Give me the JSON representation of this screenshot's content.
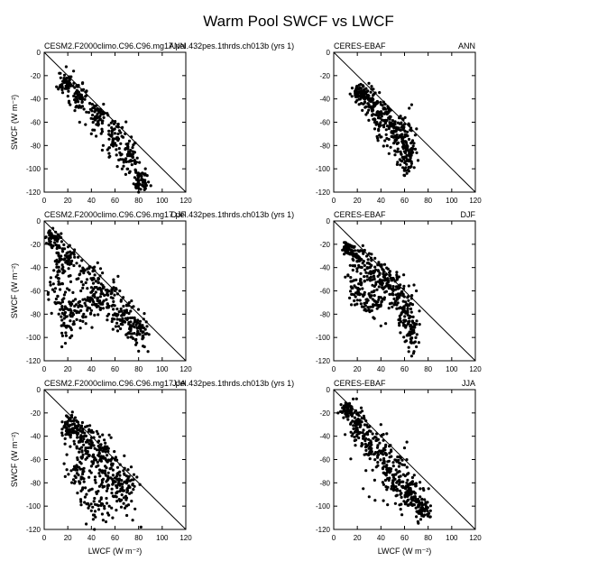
{
  "figure": {
    "title": "Warm Pool SWCF vs LWCF"
  },
  "chart_data": [
    {
      "type": "scatter",
      "panel": "cesm-ann",
      "left_label": "CESM2.F2000climo.C96.C96.mg17.pel.432pes.1thrds.ch013b (yrs 1)",
      "right_label": "ANN",
      "xlabel": "",
      "ylabel": "SWCF (W m⁻²)",
      "xlim": [
        0,
        120
      ],
      "ylim": [
        -120,
        0
      ],
      "xticks": [
        0,
        20,
        40,
        60,
        80,
        100,
        120
      ],
      "yticks": [
        0,
        -20,
        -40,
        -60,
        -80,
        -100,
        -120
      ],
      "reference_line": "y = -x",
      "marker_color": "#000000",
      "cloud": {
        "segments": [
          [
            18,
            -26,
            3,
            5
          ],
          [
            30,
            -38,
            4,
            6
          ],
          [
            45,
            -55,
            4,
            7
          ],
          [
            60,
            -72,
            4,
            7
          ],
          [
            72,
            -88,
            4,
            7
          ],
          [
            82,
            -110,
            3,
            6
          ]
        ],
        "n": 340,
        "seed": 11
      },
      "extra_points": [
        [
          18,
          -24
        ],
        [
          20,
          -28
        ],
        [
          85,
          -118
        ],
        [
          80,
          -112
        ],
        [
          22,
          -45
        ],
        [
          26,
          -50
        ],
        [
          30,
          -60
        ],
        [
          35,
          -62
        ],
        [
          40,
          -70
        ],
        [
          44,
          -72
        ],
        [
          50,
          -80
        ],
        [
          55,
          -90
        ],
        [
          62,
          -98
        ],
        [
          66,
          -100
        ]
      ]
    },
    {
      "type": "scatter",
      "panel": "obs-ann",
      "left_label": "CERES-EBAF",
      "right_label": "ANN",
      "xlabel": "",
      "ylabel": "",
      "xlim": [
        0,
        120
      ],
      "ylim": [
        -120,
        0
      ],
      "xticks": [
        0,
        20,
        40,
        60,
        80,
        100,
        120
      ],
      "yticks": [
        0,
        -20,
        -40,
        -60,
        -80,
        -100,
        -120
      ],
      "reference_line": "y = -x",
      "marker_color": "#000000",
      "cloud": {
        "segments": [
          [
            22,
            -35,
            3,
            3
          ],
          [
            30,
            -42,
            4,
            5
          ],
          [
            40,
            -55,
            5,
            7
          ],
          [
            50,
            -65,
            6,
            8
          ],
          [
            58,
            -75,
            5,
            9
          ],
          [
            62,
            -90,
            4,
            8
          ]
        ],
        "n": 380,
        "seed": 23
      },
      "extra_points": [
        [
          20,
          -34
        ],
        [
          24,
          -34
        ],
        [
          36,
          -62
        ],
        [
          38,
          -66
        ],
        [
          52,
          -88
        ],
        [
          56,
          -92
        ],
        [
          60,
          -100
        ],
        [
          62,
          -104
        ],
        [
          66,
          -84
        ],
        [
          68,
          -78
        ],
        [
          66,
          -45
        ],
        [
          64,
          -48
        ]
      ]
    },
    {
      "type": "scatter",
      "panel": "cesm-djf",
      "left_label": "CESM2.F2000climo.C96.C96.mg17.pel.432pes.1thrds.ch013b (yrs 1)",
      "right_label": "DJF",
      "xlabel": "",
      "ylabel": "SWCF (W m⁻²)",
      "xlim": [
        0,
        120
      ],
      "ylim": [
        -120,
        0
      ],
      "xticks": [
        0,
        20,
        40,
        60,
        80,
        100,
        120
      ],
      "yticks": [
        0,
        -20,
        -40,
        -60,
        -80,
        -100,
        -120
      ],
      "reference_line": "y = -x",
      "marker_color": "#000000",
      "cloud": {
        "segments": [
          [
            8,
            -16,
            3,
            4
          ],
          [
            20,
            -30,
            5,
            6
          ],
          [
            35,
            -45,
            6,
            7
          ],
          [
            50,
            -60,
            6,
            7
          ],
          [
            62,
            -75,
            6,
            7
          ],
          [
            72,
            -85,
            6,
            7
          ],
          [
            80,
            -95,
            4,
            6
          ],
          [
            12,
            -50,
            4,
            10
          ],
          [
            18,
            -80,
            4,
            12
          ],
          [
            30,
            -75,
            6,
            8
          ],
          [
            45,
            -70,
            6,
            6
          ]
        ],
        "n": 520,
        "seed": 37
      },
      "extra_points": [
        [
          5,
          -12
        ],
        [
          6,
          -15
        ],
        [
          15,
          -108
        ],
        [
          18,
          -105
        ],
        [
          22,
          -100
        ],
        [
          85,
          -108
        ],
        [
          88,
          -112
        ],
        [
          84,
          -100
        ]
      ]
    },
    {
      "type": "scatter",
      "panel": "obs-djf",
      "left_label": "CERES-EBAF",
      "right_label": "DJF",
      "xlabel": "",
      "ylabel": "",
      "xlim": [
        0,
        120
      ],
      "ylim": [
        -120,
        0
      ],
      "xticks": [
        0,
        20,
        40,
        60,
        80,
        100,
        120
      ],
      "yticks": [
        0,
        -20,
        -40,
        -60,
        -80,
        -100,
        -120
      ],
      "reference_line": "y = -x",
      "marker_color": "#000000",
      "cloud": {
        "segments": [
          [
            12,
            -24,
            3,
            3
          ],
          [
            22,
            -32,
            5,
            5
          ],
          [
            35,
            -45,
            6,
            6
          ],
          [
            45,
            -55,
            6,
            7
          ],
          [
            55,
            -65,
            5,
            8
          ],
          [
            62,
            -80,
            4,
            9
          ],
          [
            66,
            -95,
            3,
            8
          ],
          [
            20,
            -60,
            4,
            8
          ],
          [
            35,
            -70,
            6,
            6
          ]
        ],
        "n": 480,
        "seed": 51
      },
      "extra_points": [
        [
          10,
          -22
        ],
        [
          12,
          -20
        ],
        [
          68,
          -112
        ],
        [
          66,
          -116
        ],
        [
          70,
          -108
        ],
        [
          68,
          -55
        ],
        [
          70,
          -60
        ],
        [
          40,
          -90
        ],
        [
          44,
          -88
        ]
      ]
    },
    {
      "type": "scatter",
      "panel": "cesm-jja",
      "left_label": "CESM2.F2000climo.C96.C96.mg17.pel.432pes.1thrds.ch013b (yrs 1)",
      "right_label": "JJA",
      "xlabel": "LWCF (W m⁻²)",
      "ylabel": "SWCF (W m⁻²)",
      "xlim": [
        0,
        120
      ],
      "ylim": [
        -120,
        0
      ],
      "xticks": [
        0,
        20,
        40,
        60,
        80,
        100,
        120
      ],
      "yticks": [
        0,
        -20,
        -40,
        -60,
        -80,
        -100,
        -120
      ],
      "reference_line": "y = -x",
      "marker_color": "#000000",
      "cloud": {
        "segments": [
          [
            22,
            -32,
            4,
            5
          ],
          [
            30,
            -40,
            5,
            6
          ],
          [
            40,
            -50,
            6,
            7
          ],
          [
            50,
            -62,
            6,
            8
          ],
          [
            60,
            -75,
            6,
            8
          ],
          [
            68,
            -88,
            5,
            8
          ],
          [
            30,
            -70,
            6,
            10
          ],
          [
            45,
            -95,
            8,
            10
          ]
        ],
        "n": 460,
        "seed": 67
      },
      "extra_points": [
        [
          18,
          -28
        ],
        [
          20,
          -30
        ],
        [
          82,
          -118
        ],
        [
          75,
          -112
        ],
        [
          70,
          -108
        ],
        [
          58,
          -110
        ],
        [
          50,
          -112
        ],
        [
          40,
          -104
        ]
      ]
    },
    {
      "type": "scatter",
      "panel": "obs-jja",
      "left_label": "CERES-EBAF",
      "right_label": "JJA",
      "xlabel": "LWCF (W m⁻²)",
      "ylabel": "",
      "xlim": [
        0,
        120
      ],
      "ylim": [
        -120,
        0
      ],
      "xticks": [
        0,
        20,
        40,
        60,
        80,
        100,
        120
      ],
      "yticks": [
        0,
        -20,
        -40,
        -60,
        -80,
        -100,
        -120
      ],
      "reference_line": "y = -x",
      "marker_color": "#000000",
      "cloud": {
        "segments": [
          [
            12,
            -18,
            3,
            4
          ],
          [
            20,
            -30,
            4,
            6
          ],
          [
            30,
            -45,
            6,
            8
          ],
          [
            40,
            -58,
            6,
            10
          ],
          [
            50,
            -70,
            6,
            9
          ],
          [
            58,
            -82,
            6,
            8
          ],
          [
            66,
            -92,
            5,
            7
          ],
          [
            75,
            -102,
            4,
            5
          ]
        ],
        "n": 480,
        "seed": 83
      },
      "extra_points": [
        [
          10,
          -14
        ],
        [
          11,
          -12
        ],
        [
          80,
          -108
        ],
        [
          82,
          -104
        ],
        [
          25,
          -85
        ],
        [
          30,
          -92
        ],
        [
          35,
          -95
        ],
        [
          60,
          -50
        ],
        [
          62,
          -45
        ]
      ]
    }
  ]
}
